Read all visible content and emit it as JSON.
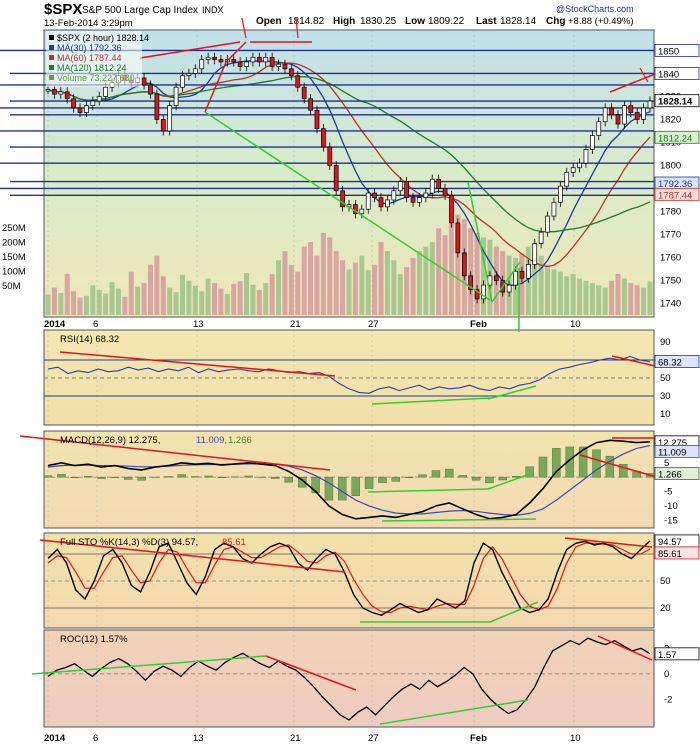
{
  "header": {
    "symbol": "$SPX",
    "name": "S&P 500 Large Cap Index",
    "exchange": "INDX",
    "date": "13-Feb-2014 3:29pm",
    "open_label": "Open",
    "open": "1814.82",
    "high_label": "High",
    "high": "1830.25",
    "low_label": "Low",
    "low": "1809.22",
    "last_label": "Last",
    "last": "1828.14",
    "chg_label": "Chg",
    "chg": "+8.88 (+0.49%)",
    "watermark": "@StockCharts.com"
  },
  "chart_data": [
    {
      "type": "line",
      "panel": "price",
      "legend": [
        {
          "name": "$SPX (2 hour) 1828.14",
          "color": "#000000"
        },
        {
          "name": "MA(30) 1792.36",
          "color": "#1a3aa0"
        },
        {
          "name": "MA(60) 1787.44",
          "color": "#c0302a"
        },
        {
          "name": "MA(120) 1812.24",
          "color": "#1f7a2a"
        },
        {
          "name": "Volume 73,227,680",
          "color": "#6a9a4a"
        }
      ],
      "x_ticks": [
        "2014",
        "6",
        "13",
        "21",
        "27",
        "Feb",
        "10"
      ],
      "y_ticks": [
        1740,
        1750,
        1760,
        1770,
        1780,
        1790,
        1800,
        1810,
        1820,
        1830,
        1840,
        1850
      ],
      "y_range": [
        1735,
        1858
      ],
      "volume_ticks": [
        "250M",
        "200M",
        "150M",
        "100M",
        "50M"
      ],
      "value_tags": [
        {
          "text": "1850",
          "value": 1850,
          "style": "white"
        },
        {
          "text": "1840",
          "value": 1840,
          "style": "white"
        },
        {
          "text": "1828.14",
          "value": 1828.14,
          "style": "last"
        },
        {
          "text": "1812.24",
          "value": 1812.24,
          "style": "green"
        },
        {
          "text": "1792.36",
          "value": 1792.36,
          "style": "blue"
        },
        {
          "text": "1787.44",
          "value": 1787.44,
          "style": "red"
        }
      ],
      "candles": [
        1833,
        1831,
        1832,
        1829,
        1825,
        1823,
        1826,
        1828,
        1830,
        1834,
        1836,
        1839,
        1837,
        1836,
        1838,
        1835,
        1831,
        1820,
        1815,
        1826,
        1834,
        1839,
        1840,
        1842,
        1846,
        1847,
        1846,
        1845,
        1846,
        1845,
        1843,
        1845,
        1847,
        1845,
        1847,
        1843,
        1844,
        1842,
        1839,
        1834,
        1829,
        1824,
        1816,
        1808,
        1800,
        1789,
        1782,
        1783,
        1779,
        1781,
        1788,
        1786,
        1782,
        1785,
        1789,
        1793,
        1786,
        1784,
        1786,
        1788,
        1794,
        1790,
        1787,
        1775,
        1762,
        1752,
        1746,
        1742,
        1748,
        1752,
        1750,
        1745,
        1748,
        1754,
        1751,
        1757,
        1766,
        1771,
        1778,
        1784,
        1791,
        1797,
        1799,
        1801,
        1807,
        1813,
        1819,
        1825,
        1822,
        1818,
        1826,
        1823,
        1820,
        1825,
        1828
      ],
      "volume_bars_million": [
        45,
        60,
        48,
        90,
        52,
        38,
        42,
        65,
        55,
        47,
        72,
        58,
        40,
        95,
        62,
        70,
        110,
        130,
        85,
        60,
        50,
        88,
        75,
        64,
        52,
        80,
        70,
        58,
        46,
        68,
        74,
        92,
        66,
        55,
        70,
        90,
        120,
        140,
        110,
        95,
        150,
        160,
        130,
        180,
        170,
        140,
        120,
        100,
        115,
        130,
        98,
        110,
        160,
        140,
        120,
        90,
        105,
        125,
        140,
        150,
        160,
        190,
        175,
        200,
        220,
        210,
        190,
        180,
        170,
        165,
        150,
        140,
        130,
        125,
        135,
        150,
        140,
        130,
        110,
        100,
        95,
        85,
        90,
        80,
        75,
        70,
        65,
        60,
        75,
        90,
        80,
        70,
        65,
        60,
        73
      ]
    },
    {
      "type": "line",
      "panel": "RSI",
      "label": "RSI(14) 68.32",
      "tag": "68.32",
      "y_ticks": [
        90,
        70,
        50,
        30,
        10
      ],
      "y_range": [
        0,
        100
      ],
      "values": [
        60,
        62,
        55,
        58,
        56,
        60,
        57,
        58,
        62,
        59,
        61,
        57,
        60,
        58,
        62,
        56,
        60,
        57,
        59,
        60,
        58,
        57,
        60,
        58,
        56,
        57,
        55,
        56,
        52,
        44,
        38,
        34,
        33,
        38,
        40,
        36,
        39,
        42,
        37,
        40,
        38,
        39,
        42,
        38,
        36,
        40,
        38,
        42,
        44,
        48,
        55,
        60,
        62,
        65,
        67,
        70,
        72,
        70,
        74,
        70,
        68
      ]
    },
    {
      "type": "line",
      "panel": "MACD",
      "label_main": "MACD(12,26,9) 12.275,",
      "label_signal": "11.009,",
      "label_hist": "1.266",
      "tags": [
        "12.275",
        "11.009",
        "1.266"
      ],
      "y_ticks": [
        10,
        5,
        0,
        -5,
        -10,
        -15
      ],
      "y_range": [
        -17,
        15
      ],
      "macd": [
        4,
        5,
        4,
        4.5,
        3.5,
        4,
        3,
        2.5,
        3.5,
        4,
        5,
        4.5,
        4.8,
        4.2,
        4.6,
        5,
        4.5,
        4,
        2,
        -1,
        -5,
        -10,
        -13,
        -14.5,
        -14,
        -13.5,
        -14,
        -13,
        -12,
        -10,
        -9,
        -11,
        -13,
        -14.5,
        -14,
        -13,
        -9,
        -4,
        2,
        6,
        9.5,
        12,
        12.8,
        12.5,
        12,
        12.275
      ],
      "signal": [
        3.5,
        4,
        4.2,
        4.2,
        4,
        4,
        3.8,
        3.6,
        3.6,
        3.8,
        4.1,
        4.3,
        4.4,
        4.4,
        4.5,
        4.6,
        4.6,
        4.5,
        3.8,
        2.5,
        0.5,
        -2,
        -5,
        -8,
        -10,
        -11.5,
        -12.5,
        -12.8,
        -12.8,
        -12.3,
        -11.8,
        -11.6,
        -11.9,
        -12.5,
        -13,
        -13.3,
        -12.6,
        -11,
        -8,
        -4.5,
        -1,
        2.5,
        5.5,
        8,
        10,
        11.009
      ],
      "histogram": [
        0.5,
        1,
        -0.2,
        0.3,
        -0.5,
        0,
        -0.8,
        -1.1,
        -0.1,
        0.2,
        0.9,
        0.2,
        0.4,
        -0.2,
        0.1,
        0.4,
        -0.1,
        -0.5,
        -1.8,
        -3.5,
        -5.5,
        -8,
        -8,
        -6.5,
        -4,
        -2,
        -1.5,
        -0.2,
        0.8,
        2.3,
        2.8,
        0.6,
        -1.1,
        -2,
        -1,
        0.3,
        3.6,
        7,
        10,
        10.5,
        10.5,
        9.5,
        7.3,
        4.5,
        2,
        1.266
      ]
    },
    {
      "type": "line",
      "panel": "Full STO",
      "label_k": "Full STO %K(14,3) %D(3) 94.57,",
      "label_d": "85.61",
      "tags": [
        "94.57",
        "85.61"
      ],
      "y_ticks": [
        80,
        50,
        20
      ],
      "y_range": [
        0,
        100
      ],
      "k": [
        75,
        85,
        70,
        40,
        30,
        50,
        78,
        85,
        70,
        45,
        38,
        60,
        88,
        92,
        70,
        48,
        35,
        55,
        85,
        92,
        88,
        75,
        70,
        80,
        88,
        92,
        88,
        70,
        62,
        75,
        85,
        80,
        60,
        35,
        20,
        15,
        12,
        18,
        25,
        20,
        15,
        18,
        30,
        25,
        20,
        28,
        70,
        92,
        85,
        60,
        40,
        20,
        15,
        18,
        30,
        60,
        85,
        92,
        94,
        90,
        92,
        88,
        80,
        75,
        85,
        94.57
      ],
      "d": [
        70,
        78,
        76,
        60,
        42,
        42,
        60,
        76,
        78,
        62,
        48,
        50,
        70,
        85,
        82,
        64,
        48,
        48,
        68,
        85,
        88,
        82,
        76,
        76,
        82,
        88,
        90,
        82,
        72,
        70,
        78,
        82,
        72,
        52,
        35,
        22,
        16,
        15,
        20,
        22,
        20,
        18,
        22,
        25,
        24,
        24,
        45,
        75,
        88,
        75,
        55,
        35,
        22,
        18,
        22,
        42,
        70,
        88,
        92,
        92,
        91,
        90,
        85,
        80,
        80,
        85.61
      ]
    },
    {
      "type": "line",
      "panel": "ROC",
      "label": "ROC(12) 1.57%",
      "tag": "1.57",
      "y_ticks": [
        2,
        0,
        -2
      ],
      "y_range": [
        -4,
        3.2
      ],
      "values": [
        -0.2,
        0.3,
        0.5,
        0.8,
        0.3,
        -0.2,
        0.4,
        0.9,
        1.2,
        0.8,
        0.2,
        -0.5,
        0.2,
        0.6,
        0.3,
        -0.2,
        0.5,
        1.0,
        0.6,
        0.3,
        0.9,
        1.3,
        1.6,
        1.2,
        0.8,
        0.5,
        1.0,
        0.6,
        0.3,
        -0.3,
        -1.0,
        -1.8,
        -2.5,
        -3.2,
        -3.6,
        -3.0,
        -2.6,
        -3.2,
        -2.5,
        -1.8,
        -1.2,
        -0.8,
        -1.2,
        -0.5,
        -1.0,
        -0.6,
        -0.1,
        0.5,
        0.0,
        -1.2,
        -2.0,
        -2.6,
        -3.1,
        -2.8,
        -2.0,
        -1.0,
        0.5,
        1.8,
        2.2,
        2.6,
        2.3,
        2.8,
        2.5,
        2.3,
        2.6,
        2.2,
        1.8,
        2.0,
        1.57
      ]
    }
  ]
}
